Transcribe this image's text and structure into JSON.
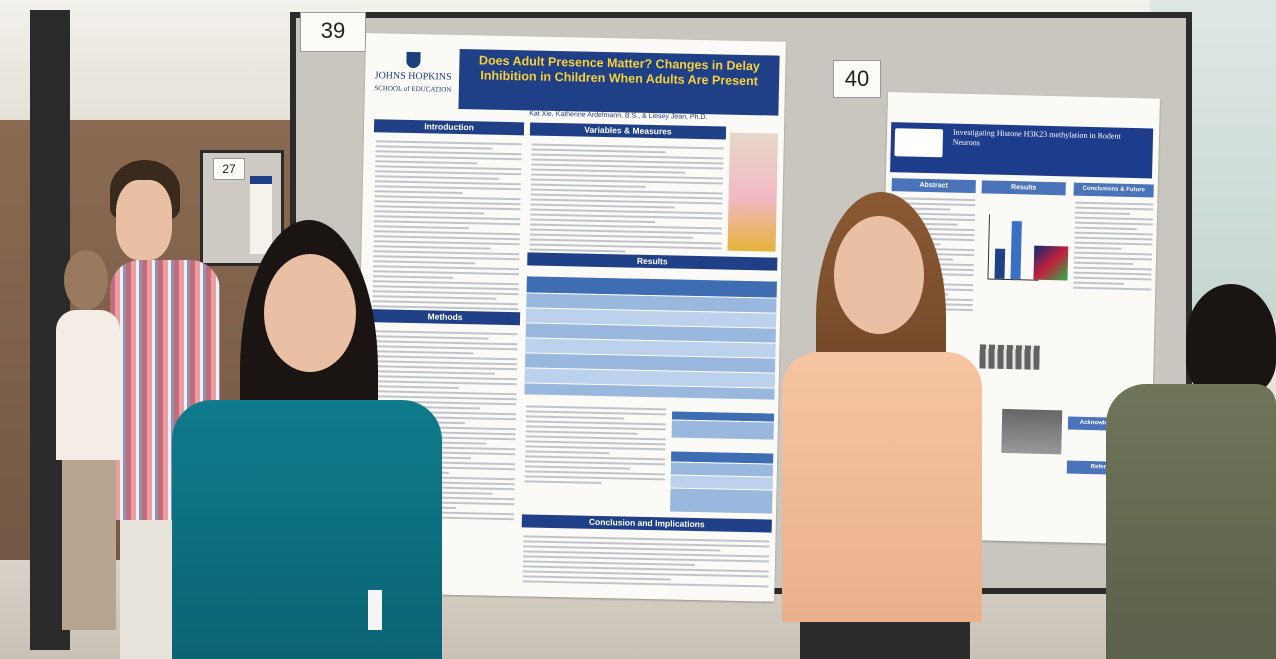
{
  "board_numbers": {
    "left_board": "39",
    "right_board": "40",
    "background_board": "27"
  },
  "poster_39": {
    "institution": "JOHNS HOPKINS",
    "school": "SCHOOL of EDUCATION",
    "title": "Does Adult Presence Matter? Changes in Delay Inhibition in Children When Adults Are Present",
    "authors": "Kat Xie, Katherine Ardelmann, B.S., & Liesey Jean, Ph.D.",
    "sections": {
      "introduction": "Introduction",
      "variables": "Variables & Measures",
      "methods": "Methods",
      "results": "Results",
      "conclusion": "Conclusion and Implications"
    }
  },
  "poster_40": {
    "title": "Investigating Histone H3K23 methylation in Rodent Neurons",
    "sections": {
      "abstract": "Abstract",
      "results": "Results",
      "conclusions": "Conclusions & Future Directions",
      "acknowledgements": "Acknowledgements",
      "references": "References"
    }
  }
}
